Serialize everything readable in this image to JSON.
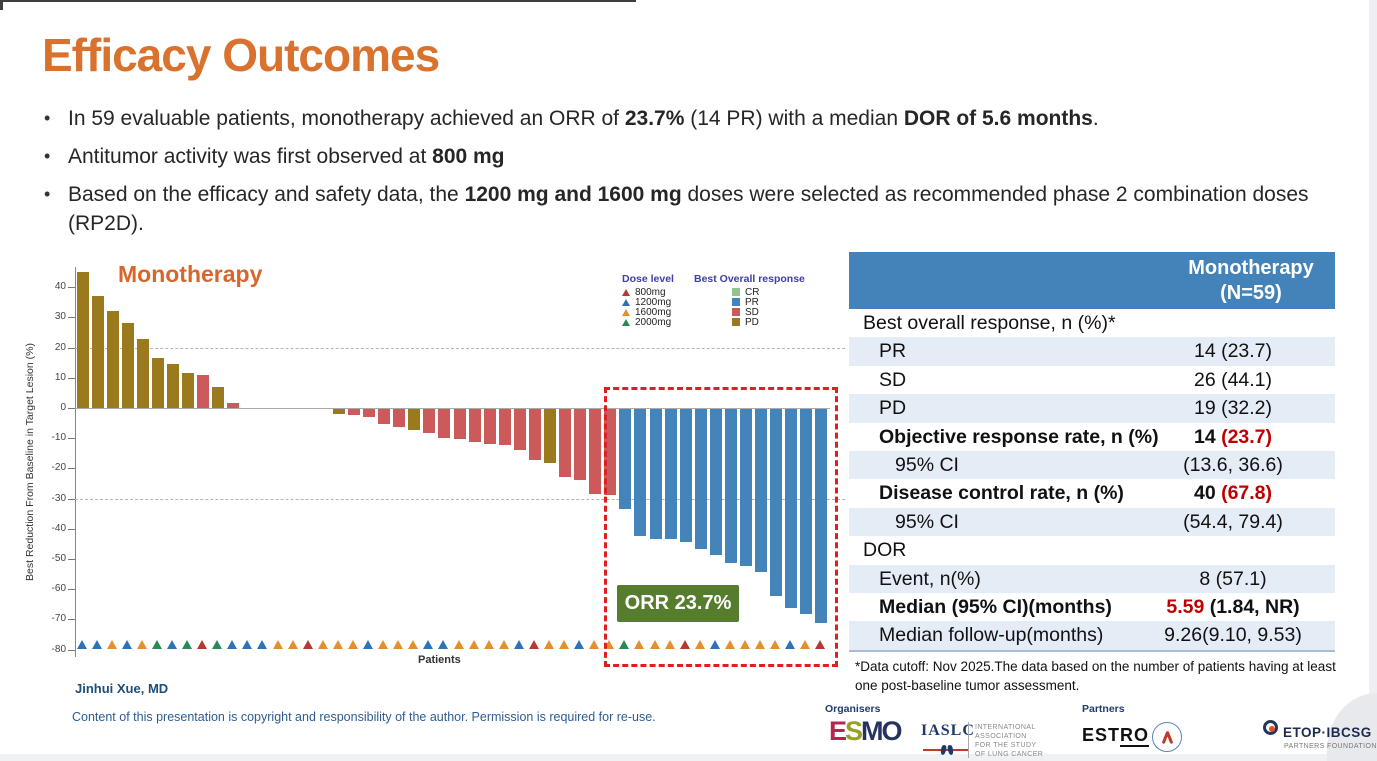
{
  "slide": {
    "title": "Efficacy Outcomes",
    "bullet_char": "•",
    "bullets": [
      [
        {
          "t": "In 59 evaluable patients, monotherapy achieved an ORR of "
        },
        {
          "t": "23.7%",
          "b": 1
        },
        {
          "t": " (14 PR) with a median "
        },
        {
          "t": "DOR of 5.6 months",
          "b": 1
        },
        {
          "t": "."
        }
      ],
      [
        {
          "t": "Antitumor activity was first observed at "
        },
        {
          "t": "800 mg",
          "b": 1
        }
      ],
      [
        {
          "t": "Based on the efficacy and safety data, the "
        },
        {
          "t": "1200 mg and 1600 mg",
          "b": 1
        },
        {
          "t": " doses were selected as recommended phase 2 combination doses (RP2D)."
        }
      ]
    ]
  },
  "chart_data": {
    "type": "bar",
    "subtype": "waterfall",
    "title": "Monotherapy",
    "xlabel": "Patients",
    "ylabel": "Best Reduction From Baseline in Target Lesion (%)",
    "ylim": [
      -80,
      45
    ],
    "yticks": [
      40,
      30,
      20,
      10,
      0,
      -10,
      -20,
      -30,
      -40,
      -50,
      -60,
      -70,
      -80
    ],
    "reference_lines": [
      20,
      -30
    ],
    "grid": "horizontal dashed at +20 and -30",
    "annotation": {
      "text": "ORR 23.7%",
      "box_color": "#567c2d"
    },
    "highlight_box": {
      "style": "red dashed rectangle",
      "around": "PR responders"
    },
    "legend": {
      "position": "top-right",
      "dose_title": "Dose level",
      "doses": [
        {
          "label": "800mg",
          "color": "#b43a31"
        },
        {
          "label": "1200mg",
          "color": "#2f73b6"
        },
        {
          "label": "1600mg",
          "color": "#e48f2f"
        },
        {
          "label": "2000mg",
          "color": "#2b8a57"
        }
      ],
      "response_title": "Best Overall response",
      "responses": [
        {
          "label": "CR",
          "color": "#90c292"
        },
        {
          "label": "PR",
          "color": "#4584ba"
        },
        {
          "label": "SD",
          "color": "#cd5a5a"
        },
        {
          "label": "PD",
          "color": "#9a7a1c"
        }
      ]
    },
    "series": [
      {
        "name": "Best reduction from baseline per patient (%), v=value r=best response d=dose",
        "points": [
          {
            "v": 45,
            "r": "PD",
            "d": "1200mg"
          },
          {
            "v": 37,
            "r": "PD",
            "d": "1200mg"
          },
          {
            "v": 32,
            "r": "PD",
            "d": "1600mg"
          },
          {
            "v": 28,
            "r": "PD",
            "d": "1200mg"
          },
          {
            "v": 23,
            "r": "PD",
            "d": "1600mg"
          },
          {
            "v": 16.5,
            "r": "PD",
            "d": "2000mg"
          },
          {
            "v": 14.5,
            "r": "PD",
            "d": "1200mg"
          },
          {
            "v": 11.5,
            "r": "PD",
            "d": "2000mg"
          },
          {
            "v": 11,
            "r": "SD",
            "d": "800mg"
          },
          {
            "v": 7,
            "r": "PD",
            "d": "2000mg"
          },
          {
            "v": 1.5,
            "r": "SD",
            "d": "1200mg"
          },
          {
            "v": 0,
            "r": "SD",
            "d": "1200mg"
          },
          {
            "v": 0,
            "r": "SD",
            "d": "1200mg"
          },
          {
            "v": 0,
            "r": "SD",
            "d": "1600mg"
          },
          {
            "v": 0,
            "r": "SD",
            "d": "1600mg"
          },
          {
            "v": 0,
            "r": "SD",
            "d": "800mg"
          },
          {
            "v": 0,
            "r": "SD",
            "d": "1600mg"
          },
          {
            "v": -1.5,
            "r": "PD",
            "d": "1600mg"
          },
          {
            "v": -2,
            "r": "SD",
            "d": "1600mg"
          },
          {
            "v": -2.5,
            "r": "SD",
            "d": "1200mg"
          },
          {
            "v": -5,
            "r": "SD",
            "d": "1600mg"
          },
          {
            "v": -6,
            "r": "SD",
            "d": "1600mg"
          },
          {
            "v": -7,
            "r": "PD",
            "d": "1600mg"
          },
          {
            "v": -8,
            "r": "SD",
            "d": "1200mg"
          },
          {
            "v": -9.5,
            "r": "SD",
            "d": "1200mg"
          },
          {
            "v": -10,
            "r": "SD",
            "d": "1600mg"
          },
          {
            "v": -11,
            "r": "SD",
            "d": "1600mg"
          },
          {
            "v": -11.5,
            "r": "SD",
            "d": "1600mg"
          },
          {
            "v": -12,
            "r": "SD",
            "d": "1600mg"
          },
          {
            "v": -13.5,
            "r": "SD",
            "d": "1200mg"
          },
          {
            "v": -17,
            "r": "SD",
            "d": "800mg"
          },
          {
            "v": -18,
            "r": "PD",
            "d": "1600mg"
          },
          {
            "v": -22.5,
            "r": "SD",
            "d": "1600mg"
          },
          {
            "v": -23.5,
            "r": "SD",
            "d": "1200mg"
          },
          {
            "v": -28,
            "r": "SD",
            "d": "1600mg"
          },
          {
            "v": -28.5,
            "r": "SD",
            "d": "1600mg"
          },
          {
            "v": -33,
            "r": "PR",
            "d": "2000mg"
          },
          {
            "v": -42,
            "r": "PR",
            "d": "1600mg"
          },
          {
            "v": -43,
            "r": "PR",
            "d": "1600mg"
          },
          {
            "v": -43,
            "r": "PR",
            "d": "1600mg"
          },
          {
            "v": -44,
            "r": "PR",
            "d": "800mg"
          },
          {
            "v": -46.5,
            "r": "PR",
            "d": "1600mg"
          },
          {
            "v": -48.5,
            "r": "PR",
            "d": "1200mg"
          },
          {
            "v": -51,
            "r": "PR",
            "d": "1600mg"
          },
          {
            "v": -52,
            "r": "PR",
            "d": "1600mg"
          },
          {
            "v": -54,
            "r": "PR",
            "d": "1600mg"
          },
          {
            "v": -62,
            "r": "PR",
            "d": "1600mg"
          },
          {
            "v": -66,
            "r": "PR",
            "d": "1200mg"
          },
          {
            "v": -68,
            "r": "PR",
            "d": "1600mg"
          },
          {
            "v": -71,
            "r": "PR",
            "d": "800mg"
          }
        ]
      }
    ]
  },
  "table": {
    "header_lines": [
      "Monotherapy",
      "(N=59)"
    ],
    "header_bg": "#4383ba",
    "shade_bg": "#e4ecf6",
    "rows": [
      {
        "label": "Best overall response, n (%)*",
        "value_parts": [],
        "indent": 0,
        "bold": false,
        "shade": false
      },
      {
        "label": "PR",
        "value_parts": [
          {
            "t": "14 (23.7)"
          }
        ],
        "indent": 1,
        "bold": false,
        "shade": true
      },
      {
        "label": "SD",
        "value_parts": [
          {
            "t": "26 (44.1)"
          }
        ],
        "indent": 1,
        "bold": false,
        "shade": false
      },
      {
        "label": "PD",
        "value_parts": [
          {
            "t": "19 (32.2)"
          }
        ],
        "indent": 1,
        "bold": false,
        "shade": true
      },
      {
        "label": "Objective response rate, n (%)",
        "value_parts": [
          {
            "t": "14 "
          },
          {
            "t": "(23.7)",
            "red": 1
          }
        ],
        "indent": 1,
        "bold": true,
        "shade": false
      },
      {
        "label": "95% CI",
        "value_parts": [
          {
            "t": "(13.6, 36.6)"
          }
        ],
        "indent": 2,
        "bold": false,
        "shade": true
      },
      {
        "label": "Disease control rate, n (%)",
        "value_parts": [
          {
            "t": "40 "
          },
          {
            "t": "(67.8)",
            "red": 1
          }
        ],
        "indent": 1,
        "bold": true,
        "shade": false
      },
      {
        "label": "95% CI",
        "value_parts": [
          {
            "t": "(54.4, 79.4)"
          }
        ],
        "indent": 2,
        "bold": false,
        "shade": true
      },
      {
        "label": "DOR",
        "value_parts": [],
        "indent": 0,
        "bold": false,
        "shade": false
      },
      {
        "label": "Event, n(%)",
        "value_parts": [
          {
            "t": "8 (57.1)"
          }
        ],
        "indent": 1,
        "bold": false,
        "shade": true
      },
      {
        "label": "Median (95% CI)(months)",
        "value_parts": [
          {
            "t": "5.59",
            "red": 1
          },
          {
            "t": " (1.84, NR)"
          }
        ],
        "indent": 1,
        "bold": true,
        "shade": false
      },
      {
        "label": "Median follow-up(months)",
        "value_parts": [
          {
            "t": "9.26(9.10, 9.53)"
          }
        ],
        "indent": 1,
        "bold": false,
        "shade": true
      }
    ],
    "footnote": "*Data cutoff: Nov 2025.The data based on the number of patients having at least one post-baseline tumor assessment."
  },
  "footer": {
    "author": "Jinhui Xue, MD",
    "copyright": "Content of this presentation is copyright and responsibility of the author. Permission is required for re-use.",
    "organisers_label": "Organisers",
    "partners_label": "Partners",
    "esmo_letters": [
      {
        "ch": "E",
        "color": "#b5264f"
      },
      {
        "ch": "S",
        "color": "#96a126"
      },
      {
        "ch": "M",
        "color": "#26335f"
      },
      {
        "ch": "O",
        "color": "#26335f"
      }
    ],
    "iaslc": {
      "wordmark": "IASLC",
      "caption_lines": [
        "INTERNATIONAL",
        "ASSOCIATION",
        "FOR THE STUDY",
        "OF LUNG CANCER"
      ]
    },
    "estro": {
      "part1": "EST",
      "part2": "RO"
    },
    "etop": {
      "wordmark": "ETOP·IBCSG",
      "subtitle": "PARTNERS FOUNDATION"
    }
  },
  "colors": {
    "accent_orange": "#d9712f",
    "table_header_blue": "#4383ba",
    "highlight_red": "#c00000",
    "orr_badge_green": "#567c2d",
    "dashed_box_red": "#e01e1e"
  }
}
